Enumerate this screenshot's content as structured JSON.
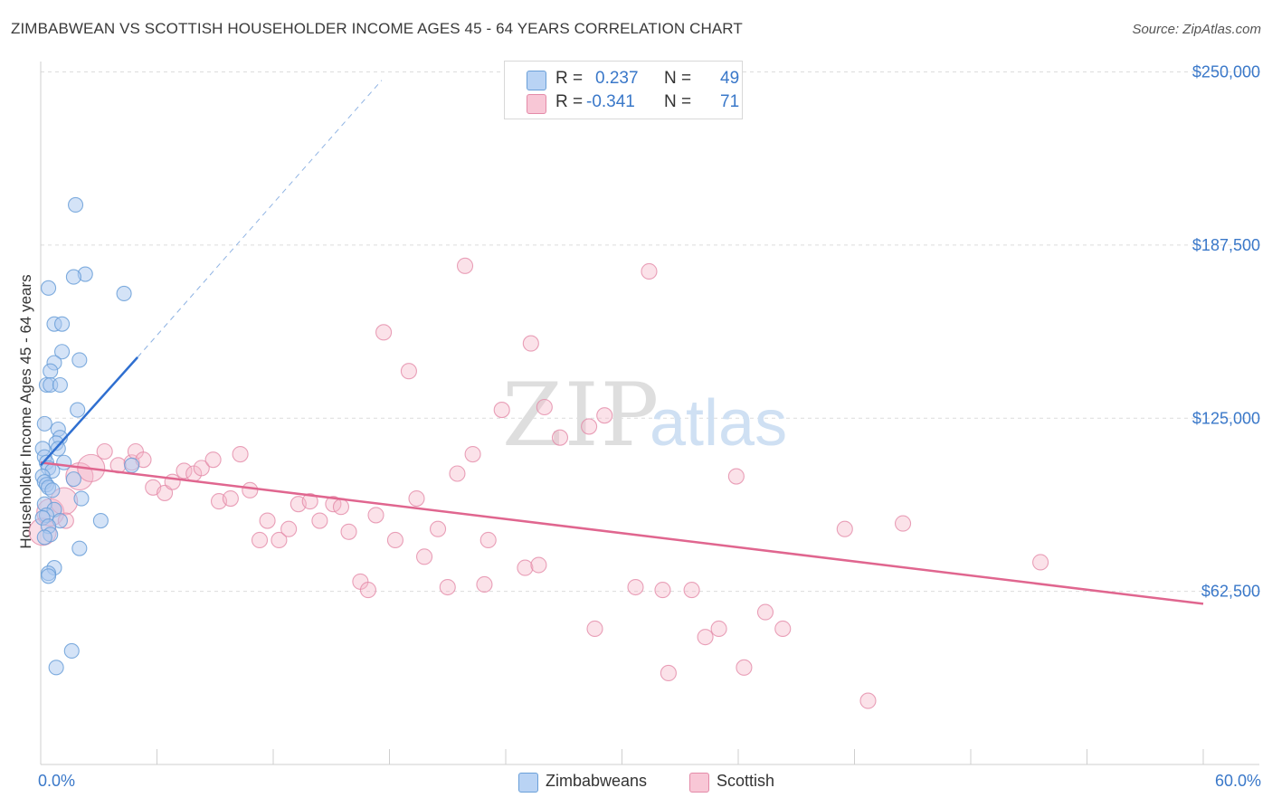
{
  "title": "ZIMBABWEAN VS SCOTTISH HOUSEHOLDER INCOME AGES 45 - 64 YEARS CORRELATION CHART",
  "source": "Source: ZipAtlas.com",
  "watermark": {
    "zip": "ZIP",
    "atlas": "atlas"
  },
  "legend": {
    "rows": [
      {
        "r_label": "R =",
        "r_value": "0.237",
        "n_label": "N =",
        "n_value": "49"
      },
      {
        "r_label": "R =",
        "r_value": "-0.341",
        "n_label": "N =",
        "n_value": "71"
      }
    ]
  },
  "bottom_legend": {
    "series1": "Zimbabweans",
    "series2": "Scottish"
  },
  "colors": {
    "blue_fill": "#a9c8f0",
    "blue_stroke": "#6a9fd8",
    "blue_line": "#2f6fd0",
    "pink_fill": "#f4b6c9",
    "pink_stroke": "#e48aa8",
    "pink_line": "#e0668f",
    "axis_text": "#3a78c9"
  },
  "chart_data": {
    "type": "scatter",
    "title": "ZIMBABWEAN VS SCOTTISH HOUSEHOLDER INCOME AGES 45 - 64 YEARS CORRELATION CHART",
    "xlabel": "",
    "ylabel": "Householder Income Ages 45 - 64 years",
    "xlim": [
      0,
      60
    ],
    "ylim": [
      0,
      250000
    ],
    "x_tick_labels": [
      "0.0%",
      "60.0%"
    ],
    "y_ticks": [
      62500,
      125000,
      187500,
      250000
    ],
    "y_tick_labels": [
      "$62,500",
      "$125,000",
      "$187,500",
      "$250,000"
    ],
    "grid": true,
    "legend_position": "top-center",
    "series": [
      {
        "name": "Zimbabweans",
        "color": "#a9c8f0",
        "trend": {
          "x": [
            0,
            5
          ],
          "y": [
            108000,
            147000
          ],
          "dashed_extension": {
            "x": [
              5,
              17.6
            ],
            "y": [
              147000,
              247000
            ]
          }
        },
        "points": [
          {
            "x": 1.8,
            "y": 202000
          },
          {
            "x": 2.3,
            "y": 177000
          },
          {
            "x": 1.7,
            "y": 176000
          },
          {
            "x": 0.4,
            "y": 172000
          },
          {
            "x": 4.3,
            "y": 170000
          },
          {
            "x": 0.7,
            "y": 159000
          },
          {
            "x": 1.1,
            "y": 159000
          },
          {
            "x": 1.1,
            "y": 149000
          },
          {
            "x": 2.0,
            "y": 146000
          },
          {
            "x": 0.7,
            "y": 145000
          },
          {
            "x": 0.5,
            "y": 142000
          },
          {
            "x": 0.3,
            "y": 137000
          },
          {
            "x": 0.5,
            "y": 137000
          },
          {
            "x": 1.0,
            "y": 137000
          },
          {
            "x": 1.9,
            "y": 128000
          },
          {
            "x": 0.2,
            "y": 123000
          },
          {
            "x": 0.9,
            "y": 121000
          },
          {
            "x": 1.0,
            "y": 118000
          },
          {
            "x": 0.8,
            "y": 116000
          },
          {
            "x": 0.9,
            "y": 114000
          },
          {
            "x": 0.1,
            "y": 114000
          },
          {
            "x": 0.2,
            "y": 111000
          },
          {
            "x": 0.3,
            "y": 109000
          },
          {
            "x": 1.2,
            "y": 109000
          },
          {
            "x": 4.7,
            "y": 108000
          },
          {
            "x": 0.4,
            "y": 107000
          },
          {
            "x": 0.6,
            "y": 106000
          },
          {
            "x": 0.1,
            "y": 104000
          },
          {
            "x": 1.7,
            "y": 103000
          },
          {
            "x": 0.2,
            "y": 102000
          },
          {
            "x": 0.3,
            "y": 101000
          },
          {
            "x": 0.4,
            "y": 100000
          },
          {
            "x": 0.6,
            "y": 99000
          },
          {
            "x": 2.1,
            "y": 96000
          },
          {
            "x": 0.2,
            "y": 94000
          },
          {
            "x": 0.7,
            "y": 92000
          },
          {
            "x": 0.3,
            "y": 90000
          },
          {
            "x": 0.1,
            "y": 89000
          },
          {
            "x": 1.0,
            "y": 88000
          },
          {
            "x": 3.1,
            "y": 88000
          },
          {
            "x": 0.4,
            "y": 86000
          },
          {
            "x": 0.5,
            "y": 83000
          },
          {
            "x": 2.0,
            "y": 78000
          },
          {
            "x": 0.7,
            "y": 71000
          },
          {
            "x": 0.4,
            "y": 69000
          },
          {
            "x": 0.4,
            "y": 68000
          },
          {
            "x": 1.6,
            "y": 41000
          },
          {
            "x": 0.8,
            "y": 35000
          },
          {
            "x": 0.2,
            "y": 82000
          }
        ]
      },
      {
        "name": "Scottish",
        "color": "#f4b6c9",
        "trend": {
          "x": [
            0,
            60
          ],
          "y": [
            109000,
            58000
          ]
        },
        "points": [
          {
            "x": 0.1,
            "y": 84000,
            "big": true
          },
          {
            "x": 0.5,
            "y": 91000,
            "big": true
          },
          {
            "x": 1.2,
            "y": 95000,
            "big": true
          },
          {
            "x": 2.0,
            "y": 104000,
            "big": true
          },
          {
            "x": 2.6,
            "y": 107000,
            "big": true
          },
          {
            "x": 3.3,
            "y": 113000
          },
          {
            "x": 4.0,
            "y": 108000
          },
          {
            "x": 4.7,
            "y": 109000
          },
          {
            "x": 4.9,
            "y": 113000
          },
          {
            "x": 5.3,
            "y": 110000
          },
          {
            "x": 5.8,
            "y": 100000
          },
          {
            "x": 6.4,
            "y": 98000
          },
          {
            "x": 6.8,
            "y": 102000
          },
          {
            "x": 7.4,
            "y": 106000
          },
          {
            "x": 7.9,
            "y": 105000
          },
          {
            "x": 8.3,
            "y": 107000
          },
          {
            "x": 8.9,
            "y": 110000
          },
          {
            "x": 9.2,
            "y": 95000
          },
          {
            "x": 9.8,
            "y": 96000
          },
          {
            "x": 10.3,
            "y": 112000
          },
          {
            "x": 10.8,
            "y": 99000
          },
          {
            "x": 11.3,
            "y": 81000
          },
          {
            "x": 11.7,
            "y": 88000
          },
          {
            "x": 12.3,
            "y": 81000
          },
          {
            "x": 12.8,
            "y": 85000
          },
          {
            "x": 13.3,
            "y": 94000
          },
          {
            "x": 13.9,
            "y": 95000
          },
          {
            "x": 14.4,
            "y": 88000
          },
          {
            "x": 15.1,
            "y": 94000
          },
          {
            "x": 15.5,
            "y": 93000
          },
          {
            "x": 15.9,
            "y": 84000
          },
          {
            "x": 16.5,
            "y": 66000
          },
          {
            "x": 16.9,
            "y": 63000
          },
          {
            "x": 17.3,
            "y": 90000
          },
          {
            "x": 17.7,
            "y": 156000
          },
          {
            "x": 18.3,
            "y": 81000
          },
          {
            "x": 19.0,
            "y": 142000
          },
          {
            "x": 19.4,
            "y": 96000
          },
          {
            "x": 19.8,
            "y": 75000
          },
          {
            "x": 20.5,
            "y": 85000
          },
          {
            "x": 21.0,
            "y": 64000
          },
          {
            "x": 21.5,
            "y": 105000
          },
          {
            "x": 21.9,
            "y": 180000
          },
          {
            "x": 22.3,
            "y": 112000
          },
          {
            "x": 22.9,
            "y": 65000
          },
          {
            "x": 23.1,
            "y": 81000
          },
          {
            "x": 23.8,
            "y": 128000
          },
          {
            "x": 25.0,
            "y": 71000
          },
          {
            "x": 25.3,
            "y": 152000
          },
          {
            "x": 25.7,
            "y": 72000
          },
          {
            "x": 26.0,
            "y": 129000
          },
          {
            "x": 26.8,
            "y": 118000
          },
          {
            "x": 28.3,
            "y": 122000
          },
          {
            "x": 28.6,
            "y": 49000
          },
          {
            "x": 29.1,
            "y": 126000
          },
          {
            "x": 30.7,
            "y": 64000
          },
          {
            "x": 31.4,
            "y": 178000
          },
          {
            "x": 32.1,
            "y": 63000
          },
          {
            "x": 32.4,
            "y": 33000
          },
          {
            "x": 33.6,
            "y": 63000
          },
          {
            "x": 34.3,
            "y": 46000
          },
          {
            "x": 35.0,
            "y": 49000
          },
          {
            "x": 35.9,
            "y": 104000
          },
          {
            "x": 36.3,
            "y": 35000
          },
          {
            "x": 37.4,
            "y": 55000
          },
          {
            "x": 38.3,
            "y": 49000
          },
          {
            "x": 41.5,
            "y": 85000
          },
          {
            "x": 42.7,
            "y": 23000
          },
          {
            "x": 44.5,
            "y": 87000
          },
          {
            "x": 51.6,
            "y": 73000
          },
          {
            "x": 1.3,
            "y": 88000
          }
        ]
      }
    ]
  }
}
